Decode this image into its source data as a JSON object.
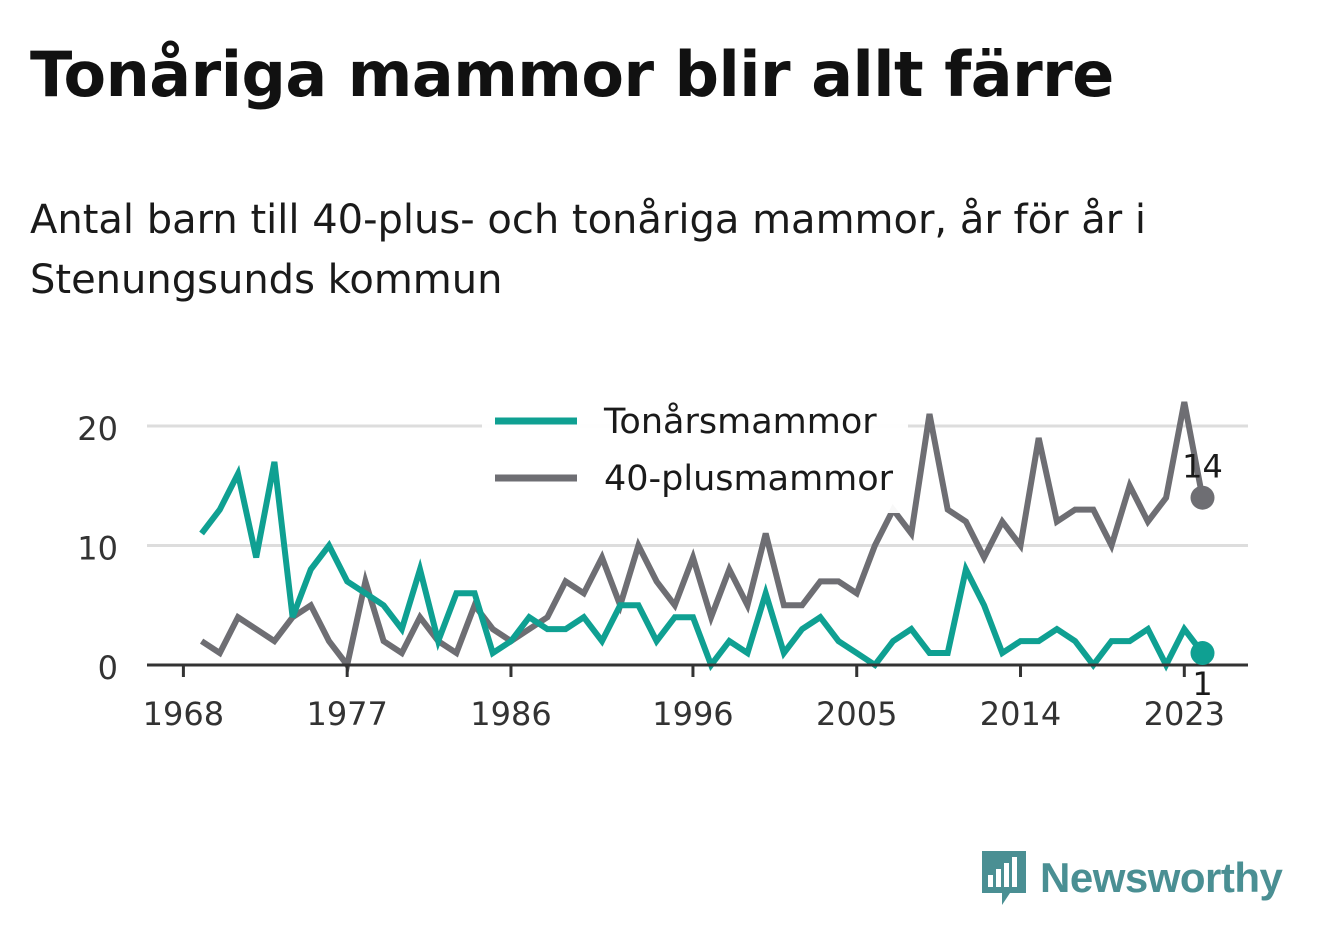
{
  "title": "Tonåriga mammor blir allt färre",
  "subtitle": "Antal barn till 40-plus- och tonåriga mammor, år för år i Stenungsunds kommun",
  "brand": "Newsworthy",
  "colors": {
    "teen": "#0fa092",
    "plus40": "#6e6e73",
    "grid": "#dddddd",
    "axis": "#333333",
    "brand": "#4a8f93"
  },
  "chart_data": {
    "type": "line",
    "title": "Tonåriga mammor blir allt färre",
    "subtitle": "Antal barn till 40-plus- och tonåriga mammor, år för år i Stenungsunds kommun",
    "xlabel": "",
    "ylabel": "",
    "x_ticks": [
      1968,
      1977,
      1986,
      1996,
      2005,
      2014,
      2023
    ],
    "y_ticks": [
      0,
      10,
      20
    ],
    "ylim": [
      0,
      20
    ],
    "grid": true,
    "legend": "top-center",
    "x": [
      1969,
      1970,
      1971,
      1972,
      1973,
      1974,
      1975,
      1976,
      1977,
      1978,
      1979,
      1980,
      1981,
      1982,
      1983,
      1984,
      1985,
      1986,
      1987,
      1988,
      1989,
      1990,
      1991,
      1992,
      1993,
      1994,
      1995,
      1996,
      1997,
      1998,
      1999,
      2000,
      2001,
      2002,
      2003,
      2004,
      2005,
      2006,
      2007,
      2008,
      2009,
      2010,
      2011,
      2012,
      2013,
      2014,
      2015,
      2016,
      2017,
      2018,
      2019,
      2020,
      2021,
      2022,
      2023,
      2024
    ],
    "series": [
      {
        "name": "Tonårsmammor",
        "color": "#0fa092",
        "values": [
          11,
          13,
          16,
          9,
          17,
          4,
          8,
          10,
          7,
          6,
          5,
          3,
          8,
          2,
          6,
          6,
          1,
          2,
          4,
          3,
          3,
          4,
          2,
          5,
          5,
          2,
          4,
          4,
          0,
          2,
          1,
          6,
          1,
          3,
          4,
          2,
          1,
          0,
          2,
          3,
          1,
          1,
          8,
          5,
          1,
          2,
          2,
          3,
          2,
          0,
          2,
          2,
          3,
          0,
          3,
          1
        ],
        "end_label": "1"
      },
      {
        "name": "40-plusmammor",
        "color": "#6e6e73",
        "values": [
          2,
          1,
          4,
          3,
          2,
          4,
          5,
          2,
          0,
          7,
          2,
          1,
          4,
          2,
          1,
          5,
          3,
          2,
          3,
          4,
          7,
          6,
          9,
          5,
          10,
          7,
          5,
          9,
          4,
          8,
          5,
          11,
          5,
          5,
          7,
          7,
          6,
          10,
          13,
          11,
          21,
          13,
          12,
          9,
          12,
          10,
          19,
          12,
          13,
          13,
          10,
          15,
          12,
          14,
          22,
          14
        ],
        "end_label": "14"
      }
    ]
  }
}
